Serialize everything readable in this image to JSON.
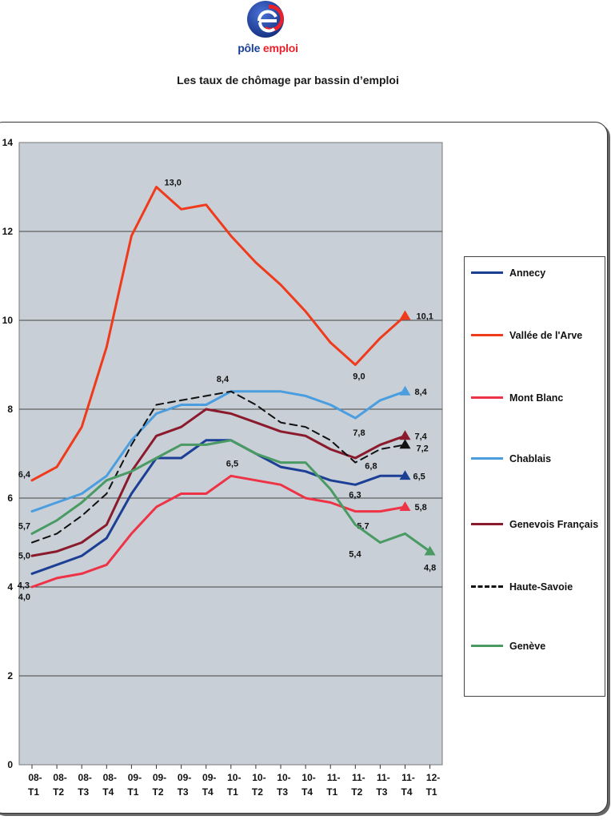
{
  "header": {
    "logo_text_part1": "pôle",
    "logo_text_part2": "emploi",
    "title": "Les taux de chômage par bassin d’emploi"
  },
  "colors": {
    "plot_background": "#c8cfd6",
    "gridline": "#444444",
    "logo_blue": "#1a3f9a",
    "logo_red": "#e8212b"
  },
  "chart_data": {
    "type": "line",
    "title": "",
    "xlabel": "",
    "ylabel": "",
    "ylim": [
      0,
      14
    ],
    "yticks": [
      0,
      2,
      4,
      6,
      8,
      10,
      12,
      14
    ],
    "grid": true,
    "legend_position": "right",
    "categories": [
      [
        "08-",
        "T1"
      ],
      [
        "08-",
        "T2"
      ],
      [
        "08-",
        "T3"
      ],
      [
        "08-",
        "T4"
      ],
      [
        "09-",
        "T1"
      ],
      [
        "09-",
        "T2"
      ],
      [
        "09-",
        "T3"
      ],
      [
        "09-",
        "T4"
      ],
      [
        "10-",
        "T1"
      ],
      [
        "10-",
        "T2"
      ],
      [
        "10-",
        "T3"
      ],
      [
        "10-",
        "T4"
      ],
      [
        "11-",
        "T1"
      ],
      [
        "11-",
        "T2"
      ],
      [
        "11-",
        "T3"
      ],
      [
        "11-",
        "T4"
      ],
      [
        "12-",
        "T1"
      ]
    ],
    "series": [
      {
        "name": "Annecy",
        "color": "#1c3f95",
        "dash": false,
        "end_marker": true,
        "values": [
          4.3,
          4.5,
          4.7,
          5.1,
          6.1,
          6.9,
          6.9,
          7.3,
          7.3,
          7.0,
          6.7,
          6.6,
          6.4,
          6.3,
          6.5,
          6.5,
          null
        ],
        "labels": [
          {
            "i": 0,
            "text": "4,3"
          },
          {
            "i": 13,
            "text": "6,3"
          },
          {
            "i": 15,
            "text": "6,5"
          }
        ]
      },
      {
        "name": "Vallée de l'Arve",
        "color": "#ef3a1c",
        "dash": false,
        "end_marker": true,
        "values": [
          6.4,
          6.7,
          7.6,
          9.4,
          11.9,
          13.0,
          12.5,
          12.6,
          11.9,
          11.3,
          10.8,
          10.2,
          9.5,
          9.0,
          9.6,
          10.1,
          null
        ],
        "labels": [
          {
            "i": 0,
            "text": "6,4"
          },
          {
            "i": 5,
            "text": "13,0"
          },
          {
            "i": 13,
            "text": "9,0"
          },
          {
            "i": 15,
            "text": "10,1"
          }
        ]
      },
      {
        "name": "Mont Blanc",
        "color": "#ee3346",
        "dash": false,
        "end_marker": true,
        "values": [
          4.0,
          4.2,
          4.3,
          4.5,
          5.2,
          5.8,
          6.1,
          6.1,
          6.5,
          6.4,
          6.3,
          6.0,
          5.9,
          5.7,
          5.7,
          5.8,
          null
        ],
        "labels": [
          {
            "i": 0,
            "text": "4,0"
          },
          {
            "i": 8,
            "text": "6,5"
          },
          {
            "i": 13,
            "text": "5,7"
          },
          {
            "i": 15,
            "text": "5,8"
          }
        ]
      },
      {
        "name": "Chablais",
        "color": "#4a9ee0",
        "dash": false,
        "end_marker": true,
        "values": [
          5.7,
          5.9,
          6.1,
          6.5,
          7.3,
          7.9,
          8.1,
          8.1,
          8.4,
          8.4,
          8.4,
          8.3,
          8.1,
          7.8,
          8.2,
          8.4,
          null
        ],
        "labels": [
          {
            "i": 0,
            "text": "5,7"
          },
          {
            "i": 8,
            "text": "8,4"
          },
          {
            "i": 13,
            "text": "7,8"
          },
          {
            "i": 15,
            "text": "8,4"
          }
        ]
      },
      {
        "name": "Genevois Français",
        "color": "#8a1a2c",
        "dash": false,
        "end_marker": true,
        "values": [
          4.7,
          4.8,
          5.0,
          5.4,
          6.6,
          7.4,
          7.6,
          8.0,
          7.9,
          7.7,
          7.5,
          7.4,
          7.1,
          6.9,
          7.2,
          7.4,
          null
        ],
        "labels": [
          {
            "i": 15,
            "text": "7,4"
          }
        ]
      },
      {
        "name": "Haute-Savoie",
        "color": "#111111",
        "dash": true,
        "end_marker": true,
        "values": [
          5.0,
          5.2,
          5.6,
          6.1,
          7.2,
          8.1,
          8.2,
          8.3,
          8.4,
          8.1,
          7.7,
          7.6,
          7.3,
          6.8,
          7.1,
          7.2,
          null
        ],
        "labels": [
          {
            "i": 0,
            "text": "5,0"
          },
          {
            "i": 13,
            "text": "6,8"
          },
          {
            "i": 15,
            "text": "7,2"
          }
        ]
      },
      {
        "name": "Genève",
        "color": "#4a9a64",
        "dash": false,
        "end_marker": true,
        "values": [
          5.2,
          5.5,
          5.9,
          6.4,
          6.6,
          6.9,
          7.2,
          7.2,
          7.3,
          7.0,
          6.8,
          6.8,
          6.2,
          5.4,
          5.0,
          5.2,
          4.8
        ],
        "labels": [
          {
            "i": 13,
            "text": "5,4"
          },
          {
            "i": 16,
            "text": "4,8"
          }
        ]
      }
    ]
  }
}
